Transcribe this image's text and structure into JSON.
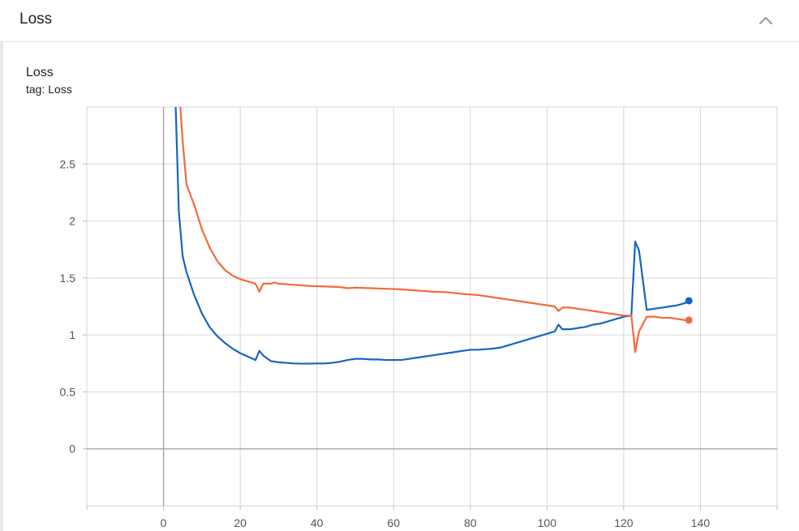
{
  "panel": {
    "title": "Loss",
    "collapse_icon": "chevron-up-icon"
  },
  "card": {
    "title": "Loss",
    "tag": "tag: Loss"
  },
  "colors": {
    "series_blue": "#1565c0",
    "series_orange": "#f4693a",
    "grid": "#d6d6d6",
    "zero_axis": "#9e9e9e"
  },
  "chart_data": {
    "type": "line",
    "title": "Loss",
    "subtitle": "tag: Loss",
    "xlabel": "",
    "ylabel": "",
    "xlim": [
      -20,
      160
    ],
    "ylim": [
      -0.5,
      3.0
    ],
    "x_ticks": [
      0,
      20,
      40,
      60,
      80,
      100,
      120,
      140
    ],
    "y_ticks": [
      0,
      0.5,
      1,
      1.5,
      2,
      2.5
    ],
    "x_tick_labels": [
      "0",
      "20",
      "40",
      "60",
      "80",
      "100",
      "120",
      "140"
    ],
    "y_tick_labels": [
      "0",
      "0.5",
      "1",
      "1.5",
      "2",
      "2.5"
    ],
    "grid": true,
    "legend": "none",
    "series": [
      {
        "color": "#1565c0",
        "x": [
          3,
          4,
          5,
          6,
          8,
          10,
          12,
          14,
          16,
          18,
          20,
          22,
          24,
          25,
          26,
          28,
          30,
          32,
          34,
          36,
          38,
          40,
          42,
          44,
          46,
          48,
          50,
          52,
          54,
          56,
          58,
          60,
          62,
          64,
          66,
          68,
          70,
          72,
          74,
          76,
          78,
          80,
          82,
          84,
          86,
          88,
          90,
          92,
          94,
          96,
          98,
          100,
          102,
          103,
          104,
          106,
          108,
          110,
          112,
          114,
          116,
          118,
          120,
          122,
          123,
          124,
          126,
          128,
          130,
          132,
          134,
          136,
          137
        ],
        "y": [
          3.2,
          2.08,
          1.69,
          1.55,
          1.35,
          1.19,
          1.07,
          0.99,
          0.93,
          0.88,
          0.84,
          0.81,
          0.78,
          0.86,
          0.82,
          0.77,
          0.76,
          0.755,
          0.75,
          0.748,
          0.748,
          0.75,
          0.75,
          0.755,
          0.765,
          0.78,
          0.79,
          0.79,
          0.785,
          0.785,
          0.78,
          0.78,
          0.78,
          0.79,
          0.8,
          0.81,
          0.82,
          0.83,
          0.84,
          0.85,
          0.86,
          0.87,
          0.87,
          0.875,
          0.88,
          0.89,
          0.91,
          0.93,
          0.95,
          0.97,
          0.99,
          1.01,
          1.03,
          1.09,
          1.05,
          1.05,
          1.06,
          1.07,
          1.09,
          1.1,
          1.12,
          1.14,
          1.16,
          1.17,
          1.82,
          1.74,
          1.22,
          1.23,
          1.24,
          1.25,
          1.26,
          1.28,
          1.3
        ]
      },
      {
        "color": "#f4693a",
        "x": [
          4,
          5,
          6,
          8,
          10,
          12,
          14,
          16,
          18,
          20,
          22,
          24,
          25,
          26,
          28,
          29,
          30,
          34,
          38,
          42,
          46,
          48,
          50,
          54,
          58,
          62,
          66,
          70,
          74,
          78,
          82,
          86,
          90,
          94,
          98,
          100,
          102,
          103,
          104,
          106,
          108,
          110,
          112,
          114,
          116,
          118,
          120,
          122,
          123,
          124,
          126,
          128,
          130,
          132,
          134,
          136,
          137
        ],
        "y": [
          3.2,
          2.7,
          2.32,
          2.14,
          1.93,
          1.77,
          1.65,
          1.57,
          1.52,
          1.49,
          1.47,
          1.45,
          1.38,
          1.45,
          1.45,
          1.46,
          1.45,
          1.44,
          1.43,
          1.425,
          1.42,
          1.41,
          1.415,
          1.41,
          1.405,
          1.4,
          1.39,
          1.38,
          1.375,
          1.36,
          1.35,
          1.33,
          1.31,
          1.29,
          1.27,
          1.26,
          1.25,
          1.21,
          1.24,
          1.24,
          1.23,
          1.22,
          1.21,
          1.2,
          1.19,
          1.18,
          1.17,
          1.17,
          0.85,
          1.03,
          1.16,
          1.16,
          1.15,
          1.15,
          1.14,
          1.13,
          1.13
        ]
      }
    ]
  }
}
